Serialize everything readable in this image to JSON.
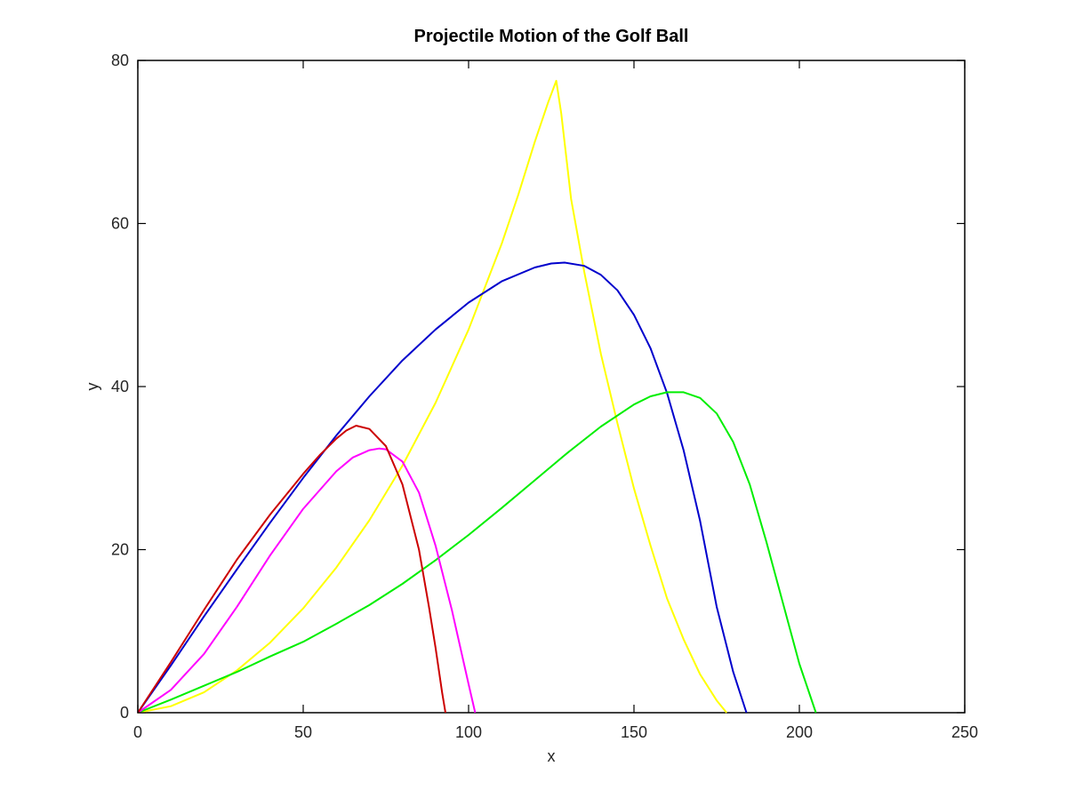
{
  "chart_data": {
    "type": "line",
    "title": "Projectile Motion of the Golf Ball",
    "xlabel": "x",
    "ylabel": "y",
    "xlim": [
      0,
      250
    ],
    "ylim": [
      0,
      80
    ],
    "xticks": [
      0,
      50,
      100,
      150,
      200,
      250
    ],
    "yticks": [
      0,
      20,
      40,
      60,
      80
    ],
    "grid": false,
    "series": [
      {
        "color": "#ffff00",
        "x": [
          0,
          10,
          20,
          30,
          40,
          50,
          60,
          70,
          80,
          90,
          100,
          110,
          115,
          120,
          124,
          126.5,
          128,
          131,
          135,
          140,
          145,
          150,
          155,
          160,
          165,
          170,
          175,
          178
        ],
        "y": [
          0,
          0.8,
          2.5,
          5.2,
          8.6,
          12.8,
          17.8,
          23.6,
          30.3,
          38.0,
          47.0,
          57.5,
          63.5,
          70.0,
          74.8,
          77.5,
          73.5,
          63.0,
          54.0,
          44.0,
          35.5,
          27.5,
          20.5,
          14.0,
          9.0,
          4.7,
          1.5,
          0
        ]
      },
      {
        "color": "#0000cc",
        "x": [
          0,
          10,
          20,
          30,
          40,
          50,
          60,
          70,
          80,
          90,
          100,
          110,
          120,
          125,
          129,
          135,
          140,
          145,
          150,
          155,
          160,
          165,
          170,
          175,
          180,
          184
        ],
        "y": [
          0,
          5.8,
          11.8,
          17.6,
          23.3,
          28.8,
          34.0,
          38.8,
          43.2,
          47.0,
          50.3,
          52.9,
          54.6,
          55.1,
          55.2,
          54.8,
          53.7,
          51.8,
          48.8,
          44.7,
          39.2,
          32.2,
          23.5,
          13.0,
          5.0,
          0
        ]
      },
      {
        "color": "#00ee00",
        "x": [
          0,
          10,
          20,
          30,
          40,
          50,
          60,
          70,
          80,
          90,
          100,
          110,
          120,
          130,
          140,
          150,
          155,
          160,
          165,
          170,
          175,
          180,
          185,
          190,
          195,
          200,
          205
        ],
        "y": [
          0,
          1.6,
          3.3,
          5.0,
          6.9,
          8.7,
          10.9,
          13.2,
          15.8,
          18.7,
          21.8,
          25.1,
          28.5,
          31.9,
          35.1,
          37.8,
          38.8,
          39.3,
          39.3,
          38.6,
          36.7,
          33.2,
          28.0,
          21.0,
          13.5,
          6.0,
          0
        ]
      },
      {
        "color": "#ff00ff",
        "x": [
          0,
          10,
          20,
          30,
          40,
          50,
          60,
          65,
          70,
          73,
          75,
          80,
          85,
          90,
          95,
          100,
          102
        ],
        "y": [
          0,
          2.8,
          7.2,
          13.0,
          19.3,
          25.0,
          29.6,
          31.3,
          32.2,
          32.4,
          32.3,
          30.8,
          27.0,
          20.5,
          12.5,
          3.5,
          0
        ]
      },
      {
        "color": "#cc0000",
        "x": [
          0,
          10,
          20,
          30,
          40,
          50,
          55,
          60,
          63,
          66,
          70,
          75,
          80,
          85,
          88,
          90,
          92,
          93
        ],
        "y": [
          0,
          6.2,
          12.6,
          18.8,
          24.3,
          29.3,
          31.6,
          33.6,
          34.6,
          35.2,
          34.8,
          32.7,
          28.0,
          20.0,
          13.0,
          8.0,
          2.5,
          0
        ]
      }
    ]
  }
}
